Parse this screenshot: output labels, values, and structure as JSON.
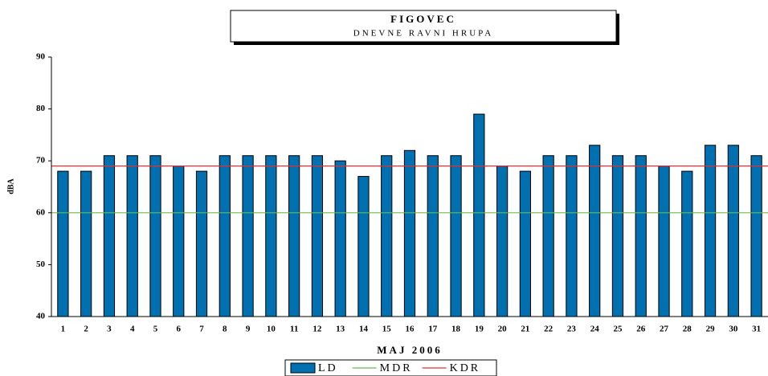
{
  "chart_data": {
    "type": "bar",
    "title": "FIGOVEC",
    "subtitle": "DNEVNE RAVNI HRUPA",
    "x_label": "MAJ 2006",
    "y_label": "dBA",
    "categories": [
      "1",
      "2",
      "3",
      "4",
      "5",
      "6",
      "7",
      "8",
      "9",
      "10",
      "11",
      "12",
      "13",
      "14",
      "15",
      "16",
      "17",
      "18",
      "19",
      "20",
      "21",
      "22",
      "23",
      "24",
      "25",
      "26",
      "27",
      "28",
      "29",
      "30",
      "31"
    ],
    "series": [
      {
        "name": "LD",
        "color": "#0070b0",
        "values": [
          68,
          68,
          71,
          71,
          71,
          69,
          68,
          71,
          71,
          71,
          71,
          71,
          70,
          67,
          71,
          72,
          71,
          71,
          79,
          69,
          68,
          71,
          71,
          73,
          71,
          71,
          69,
          68,
          73,
          73,
          71
        ]
      }
    ],
    "reference_lines": [
      {
        "name": "MDR",
        "value": 60,
        "color": "#66bb55"
      },
      {
        "name": "KDR",
        "value": 69,
        "color": "#e03030"
      }
    ],
    "ylim": [
      40,
      90
    ],
    "yticks": [
      40,
      50,
      60,
      70,
      80,
      90
    ],
    "legend": "bottom"
  }
}
